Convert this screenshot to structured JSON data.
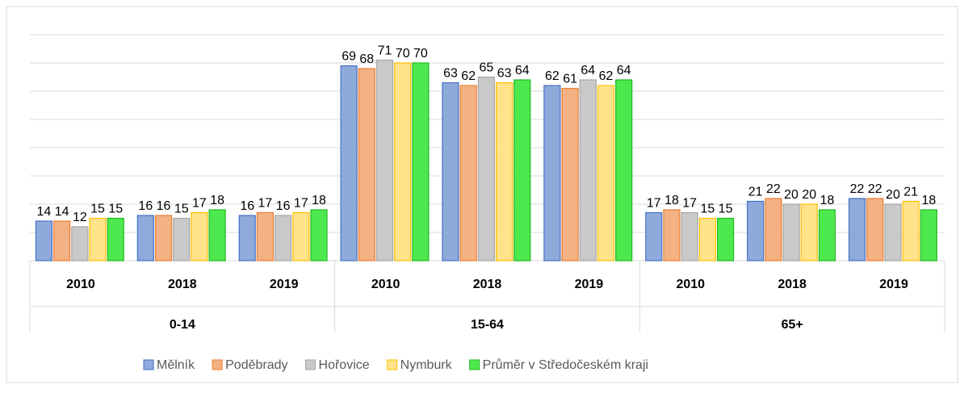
{
  "chart_data": {
    "type": "bar",
    "groups": [
      "0-14",
      "15-64",
      "65+"
    ],
    "categories": [
      "2010",
      "2018",
      "2019",
      "2010",
      "2018",
      "2019",
      "2010",
      "2018",
      "2019"
    ],
    "series": [
      {
        "name": "Mělník",
        "color": "#8eaadb",
        "values": [
          14,
          16,
          16,
          69,
          63,
          62,
          17,
          21,
          22
        ]
      },
      {
        "name": "Poděbrady",
        "color": "#f4b183",
        "values": [
          14,
          16,
          17,
          68,
          62,
          61,
          18,
          22,
          22
        ]
      },
      {
        "name": "Hořovice",
        "color": "#c9c9c9",
        "values": [
          12,
          15,
          16,
          71,
          65,
          64,
          17,
          20,
          20
        ]
      },
      {
        "name": "Nymburk",
        "color": "#ffe38a",
        "values": [
          15,
          17,
          17,
          70,
          63,
          62,
          15,
          20,
          21
        ]
      },
      {
        "name": "Průměr v Středočeském kraji",
        "color": "#4de84d",
        "values": [
          15,
          18,
          18,
          70,
          64,
          64,
          15,
          18,
          18
        ]
      }
    ],
    "ylim": [
      0,
      80
    ],
    "yticks": [
      0,
      10,
      20,
      30,
      40,
      50,
      60,
      70,
      80
    ],
    "grid": true
  }
}
